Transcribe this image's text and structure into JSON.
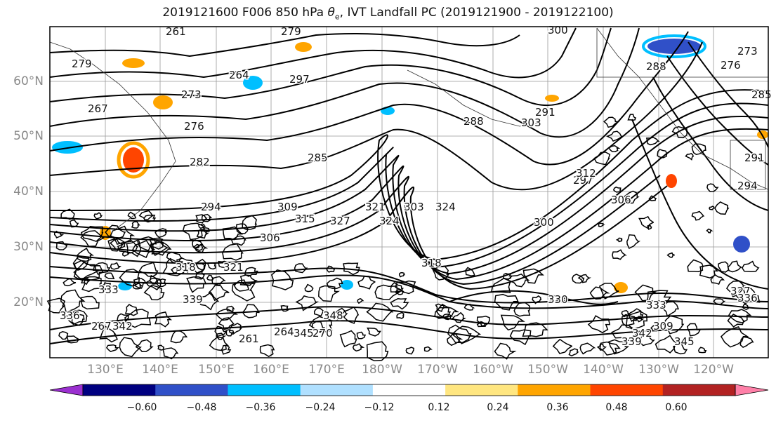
{
  "title_prefix": "2019121600 F006 850 hPa ",
  "title_theta_symbol": "θ",
  "title_theta_sub": "e",
  "title_suffix": ", IVT Landfall PC (2019121900 - 2019122100)",
  "lat_labels": [
    "60°N",
    "50°N",
    "40°N",
    "30°N",
    "20°N"
  ],
  "lon_labels": [
    "130°E",
    "140°E",
    "150°E",
    "160°E",
    "170°E",
    "180°W",
    "170°W",
    "160°W",
    "150°W",
    "140°W",
    "130°W",
    "120°W"
  ],
  "colorbar": {
    "labels": [
      "−0.60",
      "−0.48",
      "−0.36",
      "−0.24",
      "−0.12",
      "0.12",
      "0.24",
      "0.36",
      "0.48",
      "0.60"
    ],
    "colors": [
      "#9b30d0",
      "#000080",
      "#3050c8",
      "#00bfff",
      "#b0e0ff",
      "#ffffff",
      "#ffe680",
      "#ffa500",
      "#ff4500",
      "#b22222",
      "#ff80a8"
    ]
  },
  "contour_labels": [
    "261",
    "264",
    "267",
    "273",
    "276",
    "279",
    "282",
    "285",
    "288",
    "291",
    "294",
    "297",
    "300",
    "303",
    "306",
    "309",
    "315",
    "318",
    "321",
    "324",
    "327",
    "333",
    "336",
    "339",
    "342",
    "345",
    "261",
    "264",
    "267",
    "270",
    "273",
    "276",
    "279",
    "285",
    "288",
    "291",
    "294",
    "297",
    "300",
    "303",
    "306",
    "309",
    "312",
    "318",
    "321",
    "324",
    "327",
    "330",
    "333",
    "336",
    "339",
    "342",
    "345",
    "348"
  ],
  "contour_label_colors": "#111111"
}
